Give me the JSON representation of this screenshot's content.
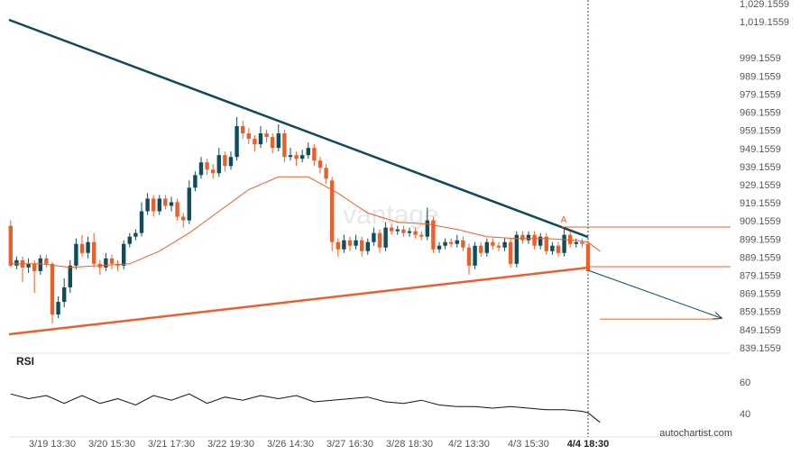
{
  "chart_data": {
    "type": "candlestick",
    "up_color": "#0f4d5c",
    "down_color": "#e8602c",
    "xlim": [
      -0.27,
      120.94
    ],
    "xticks": [
      {
        "value": 7,
        "label": "3/19 13:30"
      },
      {
        "value": 17,
        "label": "3/20 15:30"
      },
      {
        "value": 27,
        "label": "3/21 17:30"
      },
      {
        "value": 37,
        "label": "3/22 19:30"
      },
      {
        "value": 47,
        "label": "3/26 14:30"
      },
      {
        "value": 57,
        "label": "3/27 16:30"
      },
      {
        "value": 67,
        "label": "3/28 18:30"
      },
      {
        "value": 77,
        "label": "4/2 13:30"
      },
      {
        "value": 87,
        "label": "4/3 15:30"
      },
      {
        "value": 97,
        "label": "4/4 18:30"
      }
    ],
    "ylim": [
      837.1559,
      1031.6559
    ],
    "yticks": [
      {
        "value": 1029.1559,
        "label": "1,029.1559"
      },
      {
        "value": 1019.1559,
        "label": "1,019.1559"
      },
      999.1559,
      989.1559,
      979.1559,
      969.1559,
      959.1559,
      949.1559,
      939.1559,
      929.1559,
      919.1559,
      909.1559,
      899.1559,
      889.1559,
      879.1559,
      869.1559,
      859.1559,
      849.1559,
      839.1559
    ],
    "values": [
      [
        907,
        910,
        884,
        885
      ],
      [
        885,
        890,
        883,
        888
      ],
      [
        888,
        890,
        876,
        884
      ],
      [
        884,
        889,
        881,
        886
      ],
      [
        886,
        888,
        870,
        882
      ],
      [
        882,
        891,
        880,
        889
      ],
      [
        889,
        891,
        884,
        886
      ],
      [
        886,
        887,
        853,
        858
      ],
      [
        858,
        868,
        856,
        865
      ],
      [
        865,
        878,
        862,
        873
      ],
      [
        873,
        888,
        870,
        885
      ],
      [
        885,
        900,
        883,
        897
      ],
      [
        897,
        902,
        890,
        892
      ],
      [
        892,
        901,
        889,
        898
      ],
      [
        898,
        903,
        884,
        886
      ],
      [
        886,
        888,
        880,
        884
      ],
      [
        884,
        892,
        882,
        889
      ],
      [
        889,
        891,
        883,
        886
      ],
      [
        886,
        888,
        882,
        885
      ],
      [
        885,
        899,
        883,
        897
      ],
      [
        897,
        903,
        895,
        901
      ],
      [
        901,
        905,
        899,
        903
      ],
      [
        903,
        920,
        901,
        915
      ],
      [
        915,
        925,
        913,
        922
      ],
      [
        922,
        924,
        912,
        915
      ],
      [
        915,
        924,
        913,
        922
      ],
      [
        922,
        924,
        916,
        918
      ],
      [
        918,
        923,
        915,
        920
      ],
      [
        920,
        922,
        910,
        912
      ],
      [
        912,
        914,
        906,
        910
      ],
      [
        910,
        932,
        908,
        928
      ],
      [
        928,
        937,
        926,
        935
      ],
      [
        935,
        945,
        933,
        942
      ],
      [
        942,
        944,
        935,
        938
      ],
      [
        938,
        941,
        933,
        936
      ],
      [
        936,
        950,
        934,
        946
      ],
      [
        946,
        948,
        937,
        940
      ],
      [
        940,
        948,
        938,
        945
      ],
      [
        945,
        967,
        943,
        962
      ],
      [
        962,
        965,
        955,
        958
      ],
      [
        958,
        961,
        952,
        955
      ],
      [
        955,
        957,
        948,
        952
      ],
      [
        952,
        962,
        950,
        958
      ],
      [
        958,
        960,
        953,
        956
      ],
      [
        956,
        958,
        947,
        950
      ],
      [
        950,
        963,
        948,
        958
      ],
      [
        958,
        960,
        942,
        945
      ],
      [
        945,
        950,
        943,
        946
      ],
      [
        946,
        948,
        940,
        944
      ],
      [
        944,
        949,
        942,
        946
      ],
      [
        946,
        953,
        944,
        950
      ],
      [
        950,
        952,
        940,
        943
      ],
      [
        943,
        945,
        936,
        939
      ],
      [
        939,
        941,
        930,
        933
      ],
      [
        932,
        934,
        893,
        898
      ],
      [
        898,
        900,
        890,
        894
      ],
      [
        894,
        902,
        892,
        899
      ],
      [
        899,
        901,
        893,
        896
      ],
      [
        896,
        902,
        894,
        899
      ],
      [
        899,
        901,
        890,
        893
      ],
      [
        893,
        900,
        891,
        898
      ],
      [
        898,
        906,
        896,
        903
      ],
      [
        903,
        905,
        892,
        895
      ],
      [
        895,
        909,
        893,
        906
      ],
      [
        906,
        908,
        902,
        904
      ],
      [
        904,
        907,
        902,
        905
      ],
      [
        905,
        907,
        901,
        903
      ],
      [
        903,
        906,
        901,
        904
      ],
      [
        904,
        906,
        900,
        902
      ],
      [
        902,
        904,
        899,
        901
      ],
      [
        901,
        917,
        899,
        910
      ],
      [
        910,
        912,
        892,
        894
      ],
      [
        894,
        898,
        892,
        896
      ],
      [
        896,
        900,
        894,
        898
      ],
      [
        898,
        900,
        895,
        897
      ],
      [
        897,
        902,
        895,
        899
      ],
      [
        899,
        901,
        893,
        895
      ],
      [
        895,
        897,
        880,
        885
      ],
      [
        885,
        898,
        883,
        896
      ],
      [
        896,
        898,
        890,
        892
      ],
      [
        892,
        900,
        890,
        898
      ],
      [
        898,
        900,
        894,
        896
      ],
      [
        896,
        898,
        893,
        895
      ],
      [
        895,
        900,
        893,
        898
      ],
      [
        898,
        900,
        884,
        886
      ],
      [
        886,
        904,
        884,
        902
      ],
      [
        902,
        904,
        897,
        899
      ],
      [
        899,
        904,
        897,
        902
      ],
      [
        902,
        904,
        894,
        896
      ],
      [
        896,
        903,
        894,
        901
      ],
      [
        901,
        903,
        891,
        893
      ],
      [
        893,
        898,
        891,
        896
      ],
      [
        896,
        898,
        890,
        892
      ],
      [
        892,
        906,
        890,
        902
      ],
      [
        902,
        905,
        895,
        897
      ],
      [
        897,
        900,
        895,
        898
      ],
      [
        898,
        900,
        895,
        897
      ],
      [
        897,
        899,
        881,
        882
      ]
    ],
    "lines": [
      {
        "color": "#e8602c",
        "width": 1,
        "x": [
          0,
          5,
          10,
          15,
          20,
          25,
          30,
          35,
          40,
          45,
          50,
          55,
          60,
          65,
          70,
          75,
          80,
          85,
          90,
          95,
          97,
          99
        ],
        "values": [
          886,
          886,
          884,
          885,
          886,
          893,
          903,
          915,
          927,
          934,
          934,
          925,
          914,
          909,
          908,
          905,
          901,
          900,
          900,
          899,
          898,
          893
        ]
      },
      {
        "color": "#0d4a5a",
        "width": 2.5,
        "x": [
          -0.27,
          97
        ],
        "values": [
          1020.7,
          900.8
        ]
      },
      {
        "color": "#e8602c",
        "width": 2.5,
        "x": [
          -0.27,
          97
        ],
        "values": [
          847.1,
          883.9
        ]
      },
      {
        "color": "#e8602c",
        "width": 1,
        "x": [
          92.5,
          120.94
        ],
        "values": [
          906.3,
          906.3
        ]
      },
      {
        "color": "#e8602c",
        "width": 1,
        "x": [
          97,
          120.94
        ],
        "values": [
          884.4,
          884.4
        ]
      },
      {
        "color": "#e8602c",
        "width": 1,
        "x": [
          99,
          118.9
        ],
        "values": [
          855.5,
          855.5
        ]
      },
      {
        "color": "#0d4a5a",
        "width": 1,
        "arrow": true,
        "x": [
          97,
          119.4
        ],
        "values": [
          882.4,
          856.0
        ]
      }
    ],
    "annotation": {
      "text": "A",
      "x": 92.9,
      "y": 910
    },
    "rsi": {
      "label": "RSI",
      "ylim": [
        29.7,
        77.1
      ],
      "yticks": [
        40,
        60
      ],
      "x": [
        0,
        3,
        6,
        9,
        12,
        15,
        18,
        21,
        24,
        27,
        30,
        33,
        36,
        39,
        42,
        45,
        48,
        51,
        54,
        57,
        60,
        63,
        66,
        69,
        72,
        75,
        78,
        81,
        84,
        87,
        90,
        93,
        96,
        97,
        99
      ],
      "values": [
        53,
        50,
        52,
        47,
        52,
        47,
        50,
        46,
        52,
        49,
        53,
        47,
        51,
        49,
        52,
        50,
        52,
        48,
        49,
        50,
        51,
        48,
        47,
        49,
        46,
        45,
        45,
        44,
        45,
        44,
        43,
        43,
        42,
        41,
        35
      ]
    },
    "watermark": "vantage",
    "source": "autochartist.com"
  }
}
